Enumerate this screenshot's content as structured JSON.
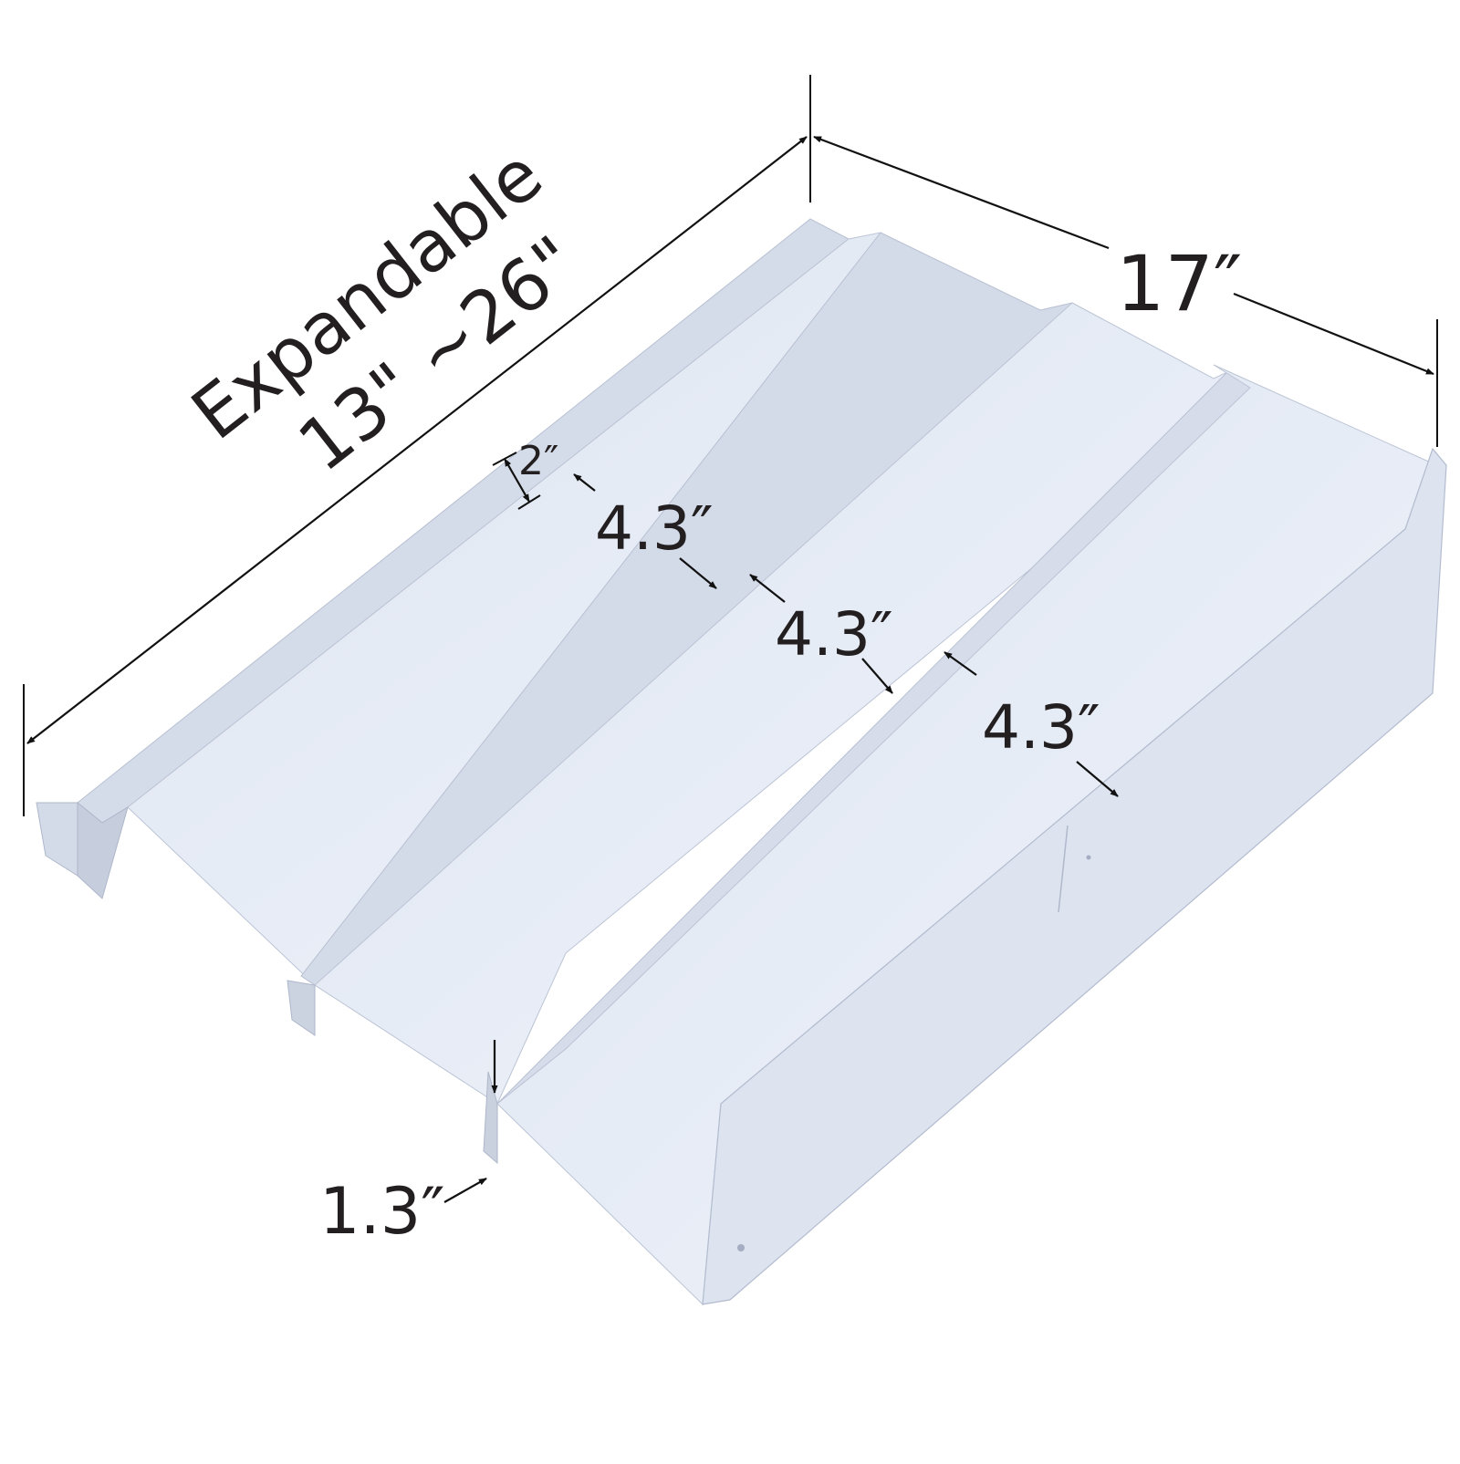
{
  "labels": {
    "expandable": "Expandable",
    "range": "13\" ~26\"",
    "width": "17″",
    "slot_2": "2″",
    "slot_a": "4.3″",
    "slot_b": "4.3″",
    "slot_c": "4.3″",
    "lip_height": "1.3″"
  },
  "colors": {
    "ink": "#231f20",
    "tray_light": "#e6ecf6",
    "tray_mid": "#d5dcea",
    "tray_dark": "#c3cbdb",
    "edge": "#b3bccf"
  }
}
